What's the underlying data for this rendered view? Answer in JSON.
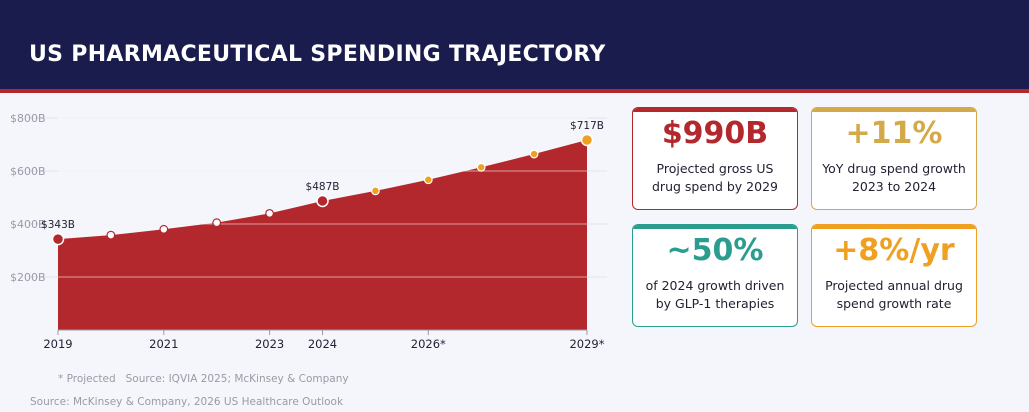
{
  "header": {
    "title": "US PHARMACEUTICAL SPENDING TRAJECTORY"
  },
  "colors": {
    "navy": "#1b1c4e",
    "red": "#b3282d",
    "gold": "#d4a94a",
    "teal": "#2a9d8f",
    "orange": "#f0a020"
  },
  "chart_data": {
    "type": "area",
    "title": "",
    "xlabel": "",
    "ylabel": "",
    "x": [
      2019,
      2020,
      2021,
      2022,
      2023,
      2024,
      2025,
      2026,
      2027,
      2028,
      2029
    ],
    "values": [
      343,
      358,
      380,
      405,
      440,
      487,
      525,
      567,
      614,
      664,
      717
    ],
    "projected_from": 2025,
    "ylim": [
      0,
      800
    ],
    "y_ticks": [
      {
        "value": 200,
        "label": "$200B"
      },
      {
        "value": 400,
        "label": "$400B"
      },
      {
        "value": 600,
        "label": "$600B"
      },
      {
        "value": 800,
        "label": "$800B"
      }
    ],
    "x_ticks": [
      {
        "value": 2019,
        "label": "2019"
      },
      {
        "value": 2021,
        "label": "2021"
      },
      {
        "value": 2023,
        "label": "2023"
      },
      {
        "value": 2024,
        "label": "2024"
      },
      {
        "value": 2026,
        "label": "2026*"
      },
      {
        "value": 2029,
        "label": "2029*"
      }
    ],
    "annotations": [
      {
        "x": 2019,
        "value": 343,
        "label": "$343B"
      },
      {
        "x": 2024,
        "value": 487,
        "label": "$487B"
      },
      {
        "x": 2029,
        "value": 717,
        "label": "$717B"
      }
    ],
    "grid": true
  },
  "cards": [
    {
      "value": "$990B",
      "line1": "Projected gross US",
      "line2": "drug spend by 2029",
      "color": "#b3282d"
    },
    {
      "value": "+11%",
      "line1": "YoY drug spend growth",
      "line2": "2023 to 2024",
      "color": "#d4a94a"
    },
    {
      "value": "~50%",
      "line1": "of 2024 growth driven",
      "line2": "by GLP-1 therapies",
      "color": "#2a9d8f"
    },
    {
      "value": "+8%/yr",
      "line1": "Projected annual drug",
      "line2": "spend growth rate",
      "color": "#f0a020"
    }
  ],
  "footer": {
    "projected_note": "* Projected",
    "chart_source": "Source: IQVIA 2025; McKinsey & Company",
    "source": "Source: McKinsey & Company, 2026 US Healthcare Outlook"
  }
}
